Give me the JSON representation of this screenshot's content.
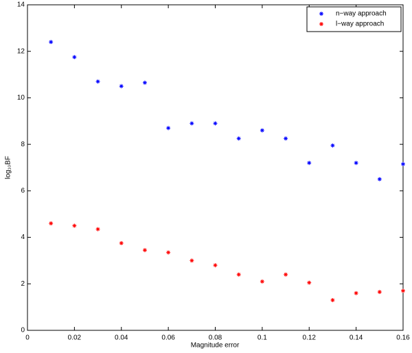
{
  "chart_data": {
    "type": "scatter",
    "xlabel": "Magnitude error",
    "ylabel": "log₁₀BF",
    "x": [
      0.01,
      0.02,
      0.03,
      0.04,
      0.05,
      0.06,
      0.07,
      0.08,
      0.09,
      0.1,
      0.11,
      0.12,
      0.13,
      0.14,
      0.15,
      0.16
    ],
    "series": [
      {
        "name": "n−way approach",
        "color": "#0000ff",
        "values": [
          12.4,
          11.75,
          10.7,
          10.5,
          10.65,
          8.7,
          8.9,
          8.9,
          8.25,
          8.6,
          8.25,
          7.2,
          7.95,
          7.2,
          6.5,
          7.15
        ]
      },
      {
        "name": "l−way approach",
        "color": "#ff0000",
        "values": [
          4.6,
          4.5,
          4.35,
          3.75,
          3.45,
          3.35,
          3.0,
          2.8,
          2.4,
          2.1,
          2.4,
          2.05,
          1.3,
          1.6,
          1.65,
          1.7
        ]
      }
    ],
    "xlim": [
      0,
      0.16
    ],
    "xticks": [
      0,
      0.02,
      0.04,
      0.06,
      0.08,
      0.1,
      0.12,
      0.14,
      0.16
    ],
    "ylim": [
      0,
      14
    ],
    "yticks": [
      0,
      2,
      4,
      6,
      8,
      10,
      12,
      14
    ],
    "marker": "asterisk",
    "legend": "upper-right",
    "grid": false
  }
}
